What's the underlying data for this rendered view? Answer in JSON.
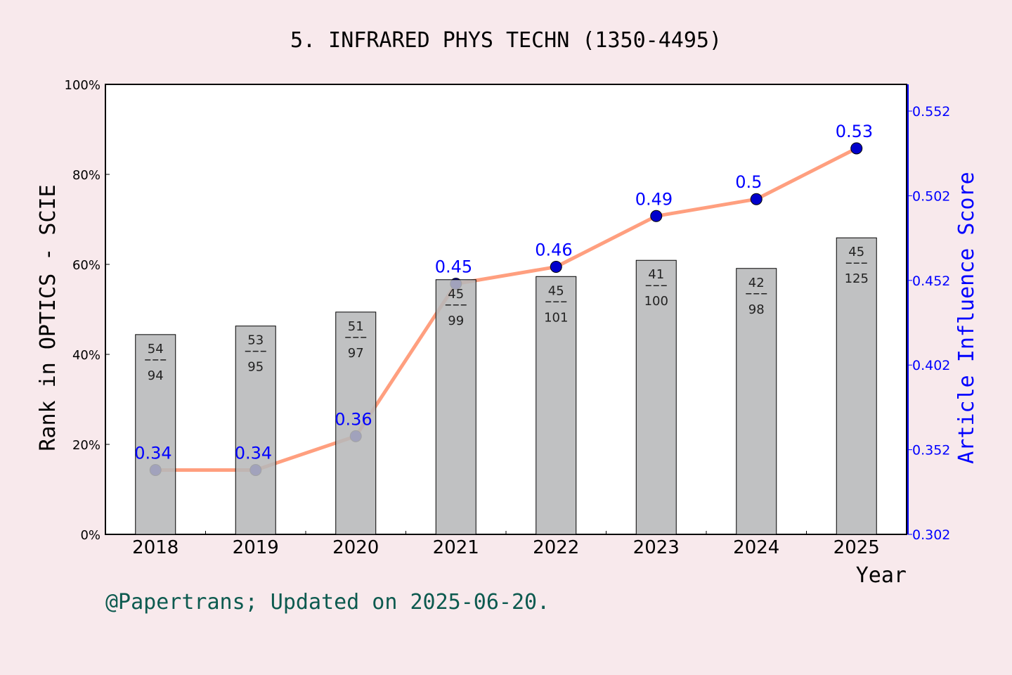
{
  "chart_data": {
    "type": "bar+line",
    "title": "5. INFRARED PHYS TECHN (1350-4495)",
    "xlabel": "Year",
    "ylabel": "Rank in OPTICS - SCIE",
    "y2label": "Article Influence Score",
    "categories": [
      "2018",
      "2019",
      "2020",
      "2021",
      "2022",
      "2023",
      "2024",
      "2025"
    ],
    "bars": {
      "values": [
        44.4,
        46.3,
        49.4,
        56.6,
        57.3,
        60.9,
        59.1,
        65.9
      ],
      "rank": [
        "54",
        "53",
        "51",
        "45",
        "45",
        "41",
        "42",
        "45"
      ],
      "total": [
        "94",
        "95",
        "97",
        "99",
        "101",
        "100",
        "98",
        "125"
      ],
      "color": "#b7b8ba"
    },
    "line": {
      "values": [
        0.34,
        0.34,
        0.36,
        0.45,
        0.46,
        0.49,
        0.5,
        0.53
      ],
      "labels": [
        "0.34",
        "0.34",
        "0.36",
        "0.45",
        "0.46",
        "0.49",
        "0.5",
        "0.53"
      ],
      "color": "#ff9f7f",
      "marker_color": "#0000cc"
    },
    "ylim": [
      0,
      100
    ],
    "yticks": [
      "0%",
      "20%",
      "40%",
      "60%",
      "80%",
      "100%"
    ],
    "y2lim": [
      0.302,
      0.552
    ],
    "y2ticks": [
      "0.302",
      "0.352",
      "0.402",
      "0.452",
      "0.502",
      "0.552"
    ],
    "footer": "@Papertrans; Updated on 2025-06-20."
  }
}
